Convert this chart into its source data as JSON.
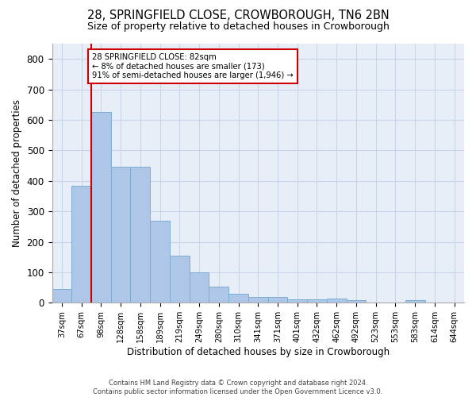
{
  "title": "28, SPRINGFIELD CLOSE, CROWBOROUGH, TN6 2BN",
  "subtitle": "Size of property relative to detached houses in Crowborough",
  "xlabel": "Distribution of detached houses by size in Crowborough",
  "ylabel": "Number of detached properties",
  "categories": [
    "37sqm",
    "67sqm",
    "98sqm",
    "128sqm",
    "158sqm",
    "189sqm",
    "219sqm",
    "249sqm",
    "280sqm",
    "310sqm",
    "341sqm",
    "371sqm",
    "401sqm",
    "432sqm",
    "462sqm",
    "492sqm",
    "523sqm",
    "553sqm",
    "583sqm",
    "614sqm",
    "644sqm"
  ],
  "values": [
    45,
    385,
    625,
    445,
    445,
    270,
    155,
    100,
    52,
    30,
    18,
    18,
    12,
    12,
    15,
    8,
    0,
    0,
    8,
    0,
    0
  ],
  "bar_color": "#aec6e8",
  "bar_edge_color": "#7aaed0",
  "grid_color": "#c8d4e8",
  "background_color": "#e8eef8",
  "vline_x": 1.5,
  "vline_color": "#cc0000",
  "annotation_text": "28 SPRINGFIELD CLOSE: 82sqm\n← 8% of detached houses are smaller (173)\n91% of semi-detached houses are larger (1,946) →",
  "annotation_box_color": "#ffffff",
  "annotation_box_edge": "#cc0000",
  "ylim": [
    0,
    850
  ],
  "yticks": [
    0,
    100,
    200,
    300,
    400,
    500,
    600,
    700,
    800
  ],
  "footer_line1": "Contains HM Land Registry data © Crown copyright and database right 2024.",
  "footer_line2": "Contains public sector information licensed under the Open Government Licence v3.0."
}
